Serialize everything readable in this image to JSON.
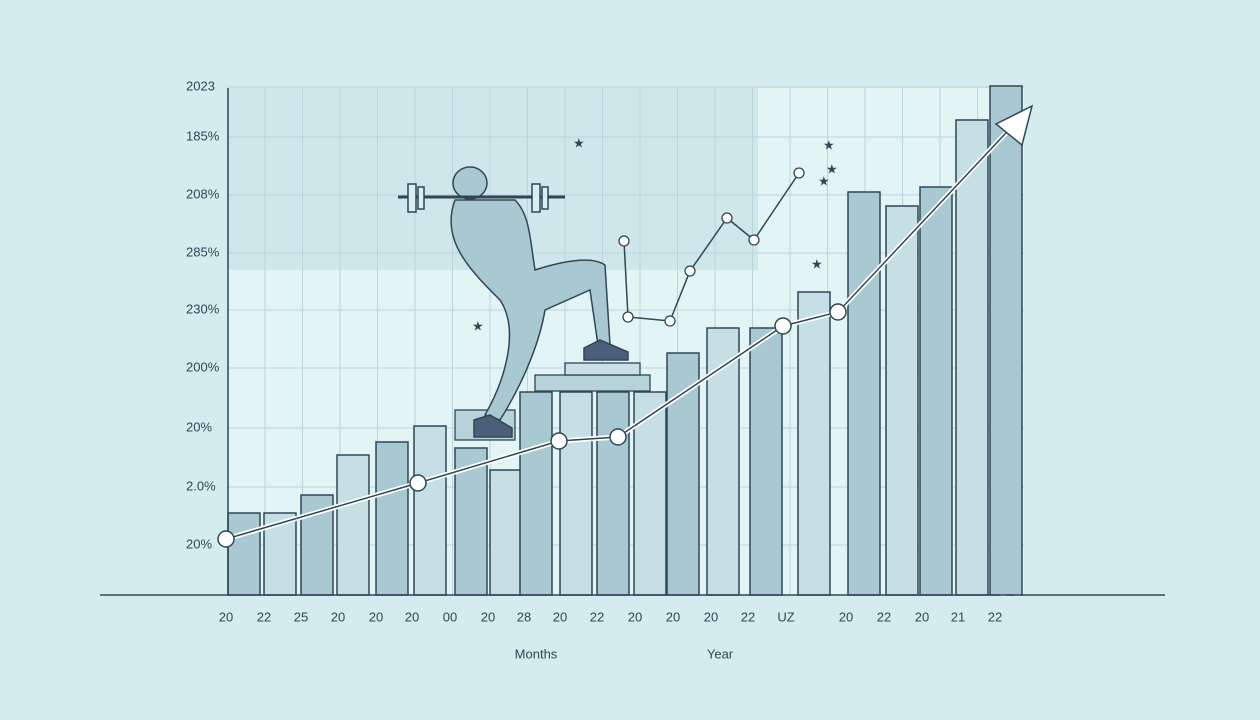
{
  "y_axis_labels": [
    "2023",
    "185%",
    "208%",
    "285%",
    "230%",
    "200%",
    "20%",
    "2.0%",
    "20%"
  ],
  "x_axis_labels": [
    "20",
    "22",
    "25",
    "20",
    "20",
    "20",
    "00",
    "20",
    "28",
    "20",
    "22",
    "20",
    "20",
    "20",
    "22",
    "UZ",
    "20",
    "22",
    "20",
    "21",
    "22"
  ],
  "axis_titles": [
    "Months",
    "Year"
  ]
}
